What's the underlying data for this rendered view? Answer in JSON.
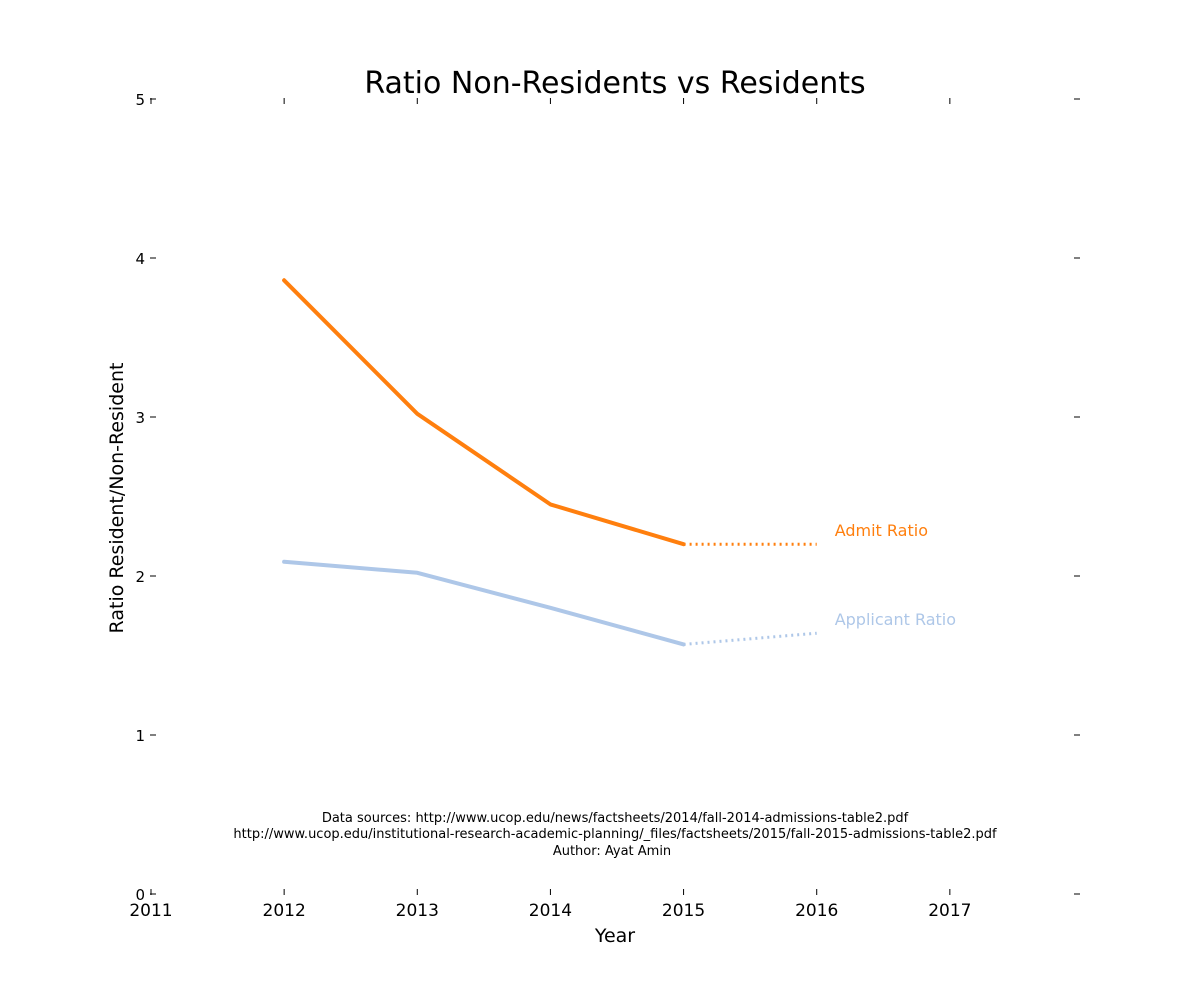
{
  "chart_data": {
    "type": "line",
    "title": "Ratio Non-Residents vs Residents",
    "xlabel": "Year",
    "ylabel": "Ratio Resident/Non-Resident",
    "xlim": [
      2011,
      2017.97
    ],
    "ylim": [
      0,
      5
    ],
    "x_ticks": [
      "2011",
      "2012",
      "2013",
      "2014",
      "2015",
      "2016",
      "2017"
    ],
    "y_ticks": [
      "0",
      "1",
      "2",
      "3",
      "4",
      "5"
    ],
    "grid": false,
    "legend": "none (series labeled directly at right of lines)",
    "series": [
      {
        "name": "Admit Ratio",
        "color": "#ff7f0e",
        "style": "solid",
        "x": [
          2012,
          2013,
          2014,
          2015
        ],
        "y": [
          3.86,
          3.02,
          2.45,
          2.2
        ]
      },
      {
        "name": "Admit Ratio",
        "color": "#ff7f0e",
        "style": "dotted",
        "x": [
          2015,
          2016
        ],
        "y": [
          2.2,
          2.2
        ]
      },
      {
        "name": "Applicant Ratio",
        "color": "#aec7e8",
        "style": "solid",
        "x": [
          2012,
          2013,
          2014,
          2015
        ],
        "y": [
          2.09,
          2.02,
          1.8,
          1.57
        ]
      },
      {
        "name": "Applicant Ratio",
        "color": "#aec7e8",
        "style": "dotted",
        "x": [
          2015,
          2016
        ],
        "y": [
          1.57,
          1.64
        ]
      }
    ],
    "annotations": [
      "Data sources: http://www.ucop.edu/news/factsheets/2014/fall-2014-admissions-table2.pdf",
      "http://www.ucop.edu/institutional-research-academic-planning/_files/factsheets/2015/fall-2015-admissions-table2.pdf",
      "Author: Ayat Amin"
    ]
  }
}
